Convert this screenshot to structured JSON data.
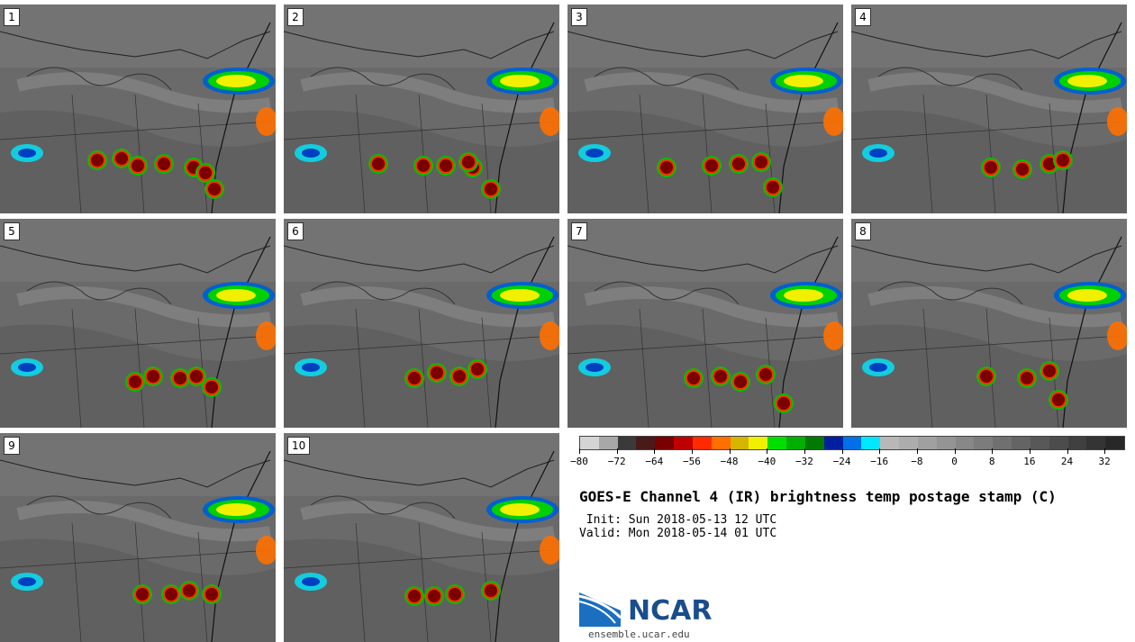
{
  "panels": [
    {
      "label": "1"
    },
    {
      "label": "2"
    },
    {
      "label": "3"
    },
    {
      "label": "4"
    },
    {
      "label": "5"
    },
    {
      "label": "6"
    },
    {
      "label": "7"
    },
    {
      "label": "8"
    },
    {
      "label": "9"
    },
    {
      "label": "10"
    }
  ],
  "colorbar": {
    "colors": [
      "#d4d4d4",
      "#a8a8a8",
      "#3a3a3a",
      "#4a1a1a",
      "#7a0000",
      "#c00000",
      "#ff2a00",
      "#ff7000",
      "#d6b400",
      "#f0f000",
      "#00e000",
      "#00b000",
      "#007a00",
      "#0020a0",
      "#0070e8",
      "#00e8ff",
      "#b8b8b8",
      "#acacac",
      "#a0a0a0",
      "#949494",
      "#888888",
      "#7c7c7c",
      "#707070",
      "#646464",
      "#585858",
      "#4c4c4c",
      "#404040",
      "#343434",
      "#282828"
    ],
    "tick_labels": [
      "−80",
      "−72",
      "−64",
      "−56",
      "−48",
      "−40",
      "−32",
      "−24",
      "−16",
      "−8",
      "0",
      "8",
      "16",
      "24",
      "32"
    ]
  },
  "title": "GOES-E Channel 4 (IR) brightness temp postage stamp (C)",
  "init": " Init: Sun 2018-05-13 12 UTC",
  "valid": "Valid: Mon 2018-05-14 01 UTC",
  "logo": {
    "text": "NCAR",
    "url": "ensemble.ucar.edu",
    "color": "#1a4d8c"
  }
}
